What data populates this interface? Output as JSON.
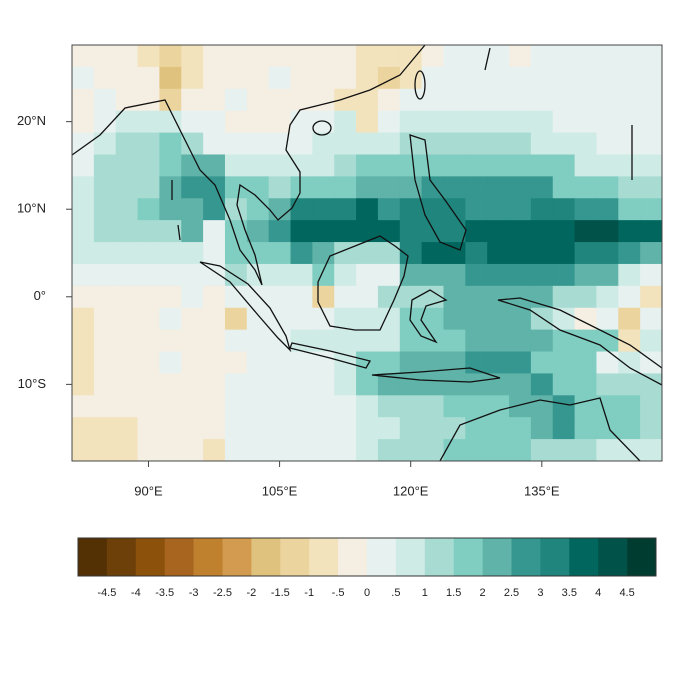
{
  "chart_data": {
    "type": "heatmap",
    "xlim": [
      81.25,
      148.75
    ],
    "ylim": [
      -18.75,
      28.75
    ],
    "xticks": [
      {
        "value": 90,
        "label": "90°E"
      },
      {
        "value": 105,
        "label": "105°E"
      },
      {
        "value": 120,
        "label": "120°E"
      },
      {
        "value": 135,
        "label": "135°E"
      }
    ],
    "yticks": [
      {
        "value": 20,
        "label": "20°N"
      },
      {
        "value": 10,
        "label": "10°N"
      },
      {
        "value": 0,
        "label": "0°"
      },
      {
        "value": -10,
        "label": "10°S"
      }
    ],
    "x": [
      82.5,
      85,
      87.5,
      90,
      92.5,
      95,
      97.5,
      100,
      102.5,
      105,
      107.5,
      110,
      112.5,
      115,
      117.5,
      120,
      122.5,
      125,
      127.5,
      130,
      132.5,
      135,
      137.5,
      140,
      142.5,
      145,
      147.5
    ],
    "y": [
      27.5,
      25,
      22.5,
      20,
      17.5,
      15,
      12.5,
      10,
      7.5,
      5,
      2.5,
      0,
      -2.5,
      -5,
      -7.5,
      -10,
      -12.5,
      -15,
      -17.5
    ],
    "values": [
      [
        -0.2,
        -0.2,
        -0.2,
        -0.7,
        -1.2,
        -0.7,
        -0.2,
        -0.2,
        -0.2,
        -0.2,
        -0.2,
        -0.2,
        -0.2,
        -0.7,
        -0.7,
        -0.7,
        -0.2,
        0.2,
        0.2,
        0.2,
        -0.2,
        0.2,
        0.2,
        0.2,
        0.2,
        0.2,
        0.2
      ],
      [
        0.2,
        -0.2,
        -0.2,
        -0.2,
        -1.7,
        -0.7,
        -0.2,
        -0.2,
        -0.2,
        0.2,
        -0.2,
        -0.2,
        -0.2,
        -0.7,
        -1.2,
        -0.7,
        0.2,
        0.2,
        0.2,
        0.2,
        0.2,
        0.2,
        0.2,
        0.2,
        0.2,
        0.2,
        0.2
      ],
      [
        -0.2,
        0.2,
        -0.2,
        -0.2,
        -1.2,
        -0.2,
        -0.2,
        0.2,
        -0.2,
        -0.2,
        -0.2,
        -0.2,
        -0.7,
        -0.7,
        -0.2,
        0.2,
        0.2,
        0.2,
        0.2,
        0.2,
        0.2,
        0.2,
        0.2,
        0.2,
        0.2,
        0.2,
        0.2
      ],
      [
        -0.2,
        0.2,
        0.7,
        0.7,
        0.7,
        0.2,
        0.2,
        -0.2,
        -0.2,
        -0.2,
        0.2,
        0.2,
        0.7,
        -0.7,
        0.2,
        0.7,
        0.7,
        0.7,
        0.7,
        0.7,
        0.7,
        0.7,
        0.2,
        0.2,
        0.2,
        0.2,
        0.2
      ],
      [
        0.2,
        0.7,
        1.2,
        1.2,
        1.7,
        1.2,
        0.2,
        0.2,
        0.2,
        0.2,
        0.2,
        0.7,
        0.7,
        0.7,
        0.7,
        1.2,
        1.2,
        1.2,
        1.2,
        1.2,
        1.2,
        0.7,
        0.7,
        0.7,
        0.2,
        0.2,
        0.2
      ],
      [
        0.2,
        1.2,
        1.2,
        1.2,
        1.7,
        2.2,
        2.2,
        0.7,
        0.7,
        0.7,
        0.7,
        0.7,
        1.2,
        1.7,
        1.7,
        1.7,
        1.7,
        1.7,
        1.7,
        1.7,
        1.7,
        1.7,
        1.7,
        0.7,
        0.7,
        0.7,
        0.7
      ],
      [
        0.7,
        1.2,
        1.2,
        1.2,
        2.2,
        2.7,
        2.7,
        1.7,
        1.7,
        1.2,
        1.7,
        1.7,
        1.7,
        2.2,
        2.2,
        2.2,
        2.7,
        2.7,
        2.7,
        2.7,
        2.7,
        2.7,
        1.7,
        1.7,
        1.7,
        1.2,
        1.2
      ],
      [
        0.7,
        1.2,
        1.2,
        1.7,
        2.2,
        2.2,
        2.7,
        1.2,
        1.7,
        2.2,
        3.2,
        3.2,
        3.2,
        3.7,
        2.7,
        3.2,
        3.2,
        3.2,
        2.7,
        2.7,
        2.7,
        3.2,
        3.2,
        2.7,
        2.7,
        1.7,
        1.7
      ],
      [
        0.7,
        1.2,
        1.2,
        1.2,
        1.2,
        2.2,
        0.2,
        1.7,
        2.2,
        2.7,
        3.7,
        3.7,
        3.7,
        3.7,
        3.7,
        3.2,
        3.2,
        3.2,
        3.7,
        3.7,
        3.7,
        3.7,
        3.7,
        4.2,
        4.2,
        3.7,
        3.7
      ],
      [
        0.7,
        0.7,
        0.7,
        0.7,
        0.7,
        0.7,
        0.2,
        1.7,
        1.7,
        1.7,
        2.7,
        2.2,
        1.2,
        1.2,
        1.2,
        3.2,
        3.7,
        3.7,
        3.2,
        3.7,
        3.7,
        3.7,
        3.7,
        3.2,
        3.2,
        2.7,
        2.2
      ],
      [
        0.2,
        0.2,
        0.2,
        0.2,
        0.2,
        0.2,
        0.2,
        1.2,
        0.7,
        0.7,
        0.7,
        1.7,
        0.7,
        0.2,
        0.2,
        2.2,
        2.2,
        2.2,
        2.7,
        2.7,
        2.7,
        2.7,
        2.7,
        2.2,
        2.2,
        0.7,
        0.2
      ],
      [
        -0.2,
        -0.2,
        -0.2,
        -0.2,
        -0.2,
        0.2,
        -0.2,
        0.2,
        0.2,
        0.2,
        0.2,
        -1.2,
        0.2,
        0.2,
        1.2,
        1.2,
        1.2,
        2.2,
        2.2,
        2.2,
        2.2,
        2.2,
        1.2,
        1.2,
        0.7,
        0.2,
        -0.7
      ],
      [
        -0.7,
        -0.2,
        -0.2,
        -0.2,
        0.2,
        -0.2,
        -0.2,
        -1.2,
        0.2,
        0.2,
        0.2,
        0.2,
        0.7,
        0.7,
        0.7,
        1.7,
        1.7,
        2.2,
        2.2,
        2.2,
        2.2,
        1.2,
        0.7,
        -0.2,
        0.2,
        -1.2,
        0.2
      ],
      [
        -0.7,
        -0.2,
        -0.2,
        -0.2,
        -0.2,
        -0.2,
        -0.2,
        0.2,
        0.2,
        0.2,
        0.7,
        0.7,
        0.7,
        0.7,
        0.7,
        1.7,
        1.7,
        1.7,
        2.2,
        2.2,
        2.2,
        2.2,
        1.7,
        1.7,
        1.7,
        -0.7,
        0.7
      ],
      [
        -0.7,
        -0.2,
        -0.2,
        -0.2,
        0.2,
        -0.2,
        -0.2,
        -0.2,
        0.2,
        0.2,
        0.2,
        0.2,
        0.7,
        1.7,
        1.7,
        2.2,
        2.2,
        2.2,
        2.7,
        2.7,
        2.7,
        1.7,
        1.7,
        1.7,
        0.2,
        0.7,
        0.2
      ],
      [
        -0.7,
        -0.2,
        -0.2,
        -0.2,
        -0.2,
        -0.2,
        -0.2,
        0.2,
        0.2,
        0.2,
        0.2,
        0.2,
        0.7,
        1.7,
        2.2,
        2.2,
        2.2,
        2.2,
        2.2,
        2.2,
        2.2,
        2.7,
        1.7,
        1.7,
        1.2,
        1.2,
        1.2
      ],
      [
        -0.2,
        -0.2,
        -0.2,
        -0.2,
        -0.2,
        -0.2,
        -0.2,
        0.2,
        0.2,
        0.2,
        0.2,
        0.2,
        0.2,
        0.7,
        1.2,
        1.2,
        1.2,
        1.7,
        1.7,
        1.7,
        2.2,
        2.2,
        2.7,
        1.7,
        1.7,
        1.7,
        1.2
      ],
      [
        -0.7,
        -0.7,
        -0.7,
        -0.2,
        -0.2,
        -0.2,
        -0.2,
        0.2,
        0.2,
        0.2,
        0.2,
        0.2,
        0.2,
        0.7,
        0.7,
        1.2,
        1.2,
        1.2,
        1.7,
        1.7,
        1.7,
        2.2,
        2.7,
        1.7,
        1.7,
        1.7,
        1.2
      ],
      [
        -0.7,
        -0.7,
        -0.7,
        -0.2,
        -0.2,
        -0.2,
        -0.7,
        0.2,
        0.2,
        0.2,
        0.2,
        0.2,
        0.2,
        0.7,
        1.2,
        1.2,
        1.2,
        1.7,
        1.7,
        1.7,
        1.7,
        1.2,
        1.2,
        1.2,
        0.7,
        0.7,
        0.7
      ]
    ],
    "colorbar": {
      "clim": [
        -5,
        5
      ],
      "colors": [
        "#543005",
        "#6e4009",
        "#8c510a",
        "#a86520",
        "#bf812d",
        "#d29b4f",
        "#dfc27d",
        "#ebd49e",
        "#f2e3bd",
        "#f5efe3",
        "#e6f1f0",
        "#cfebe6",
        "#a8dcd3",
        "#80cdc1",
        "#5fb3a8",
        "#35978f",
        "#1f857d",
        "#01665e",
        "#015248",
        "#003c30"
      ],
      "ticks": [
        -4.5,
        -4,
        -3.5,
        -3,
        -2.5,
        -2,
        -1.5,
        -1,
        {
          "value": -0.5,
          "label": "-.5"
        },
        0,
        {
          "value": 0.5,
          "label": ".5"
        },
        1,
        1.5,
        2,
        2.5,
        3,
        3.5,
        4,
        4.5
      ]
    }
  }
}
